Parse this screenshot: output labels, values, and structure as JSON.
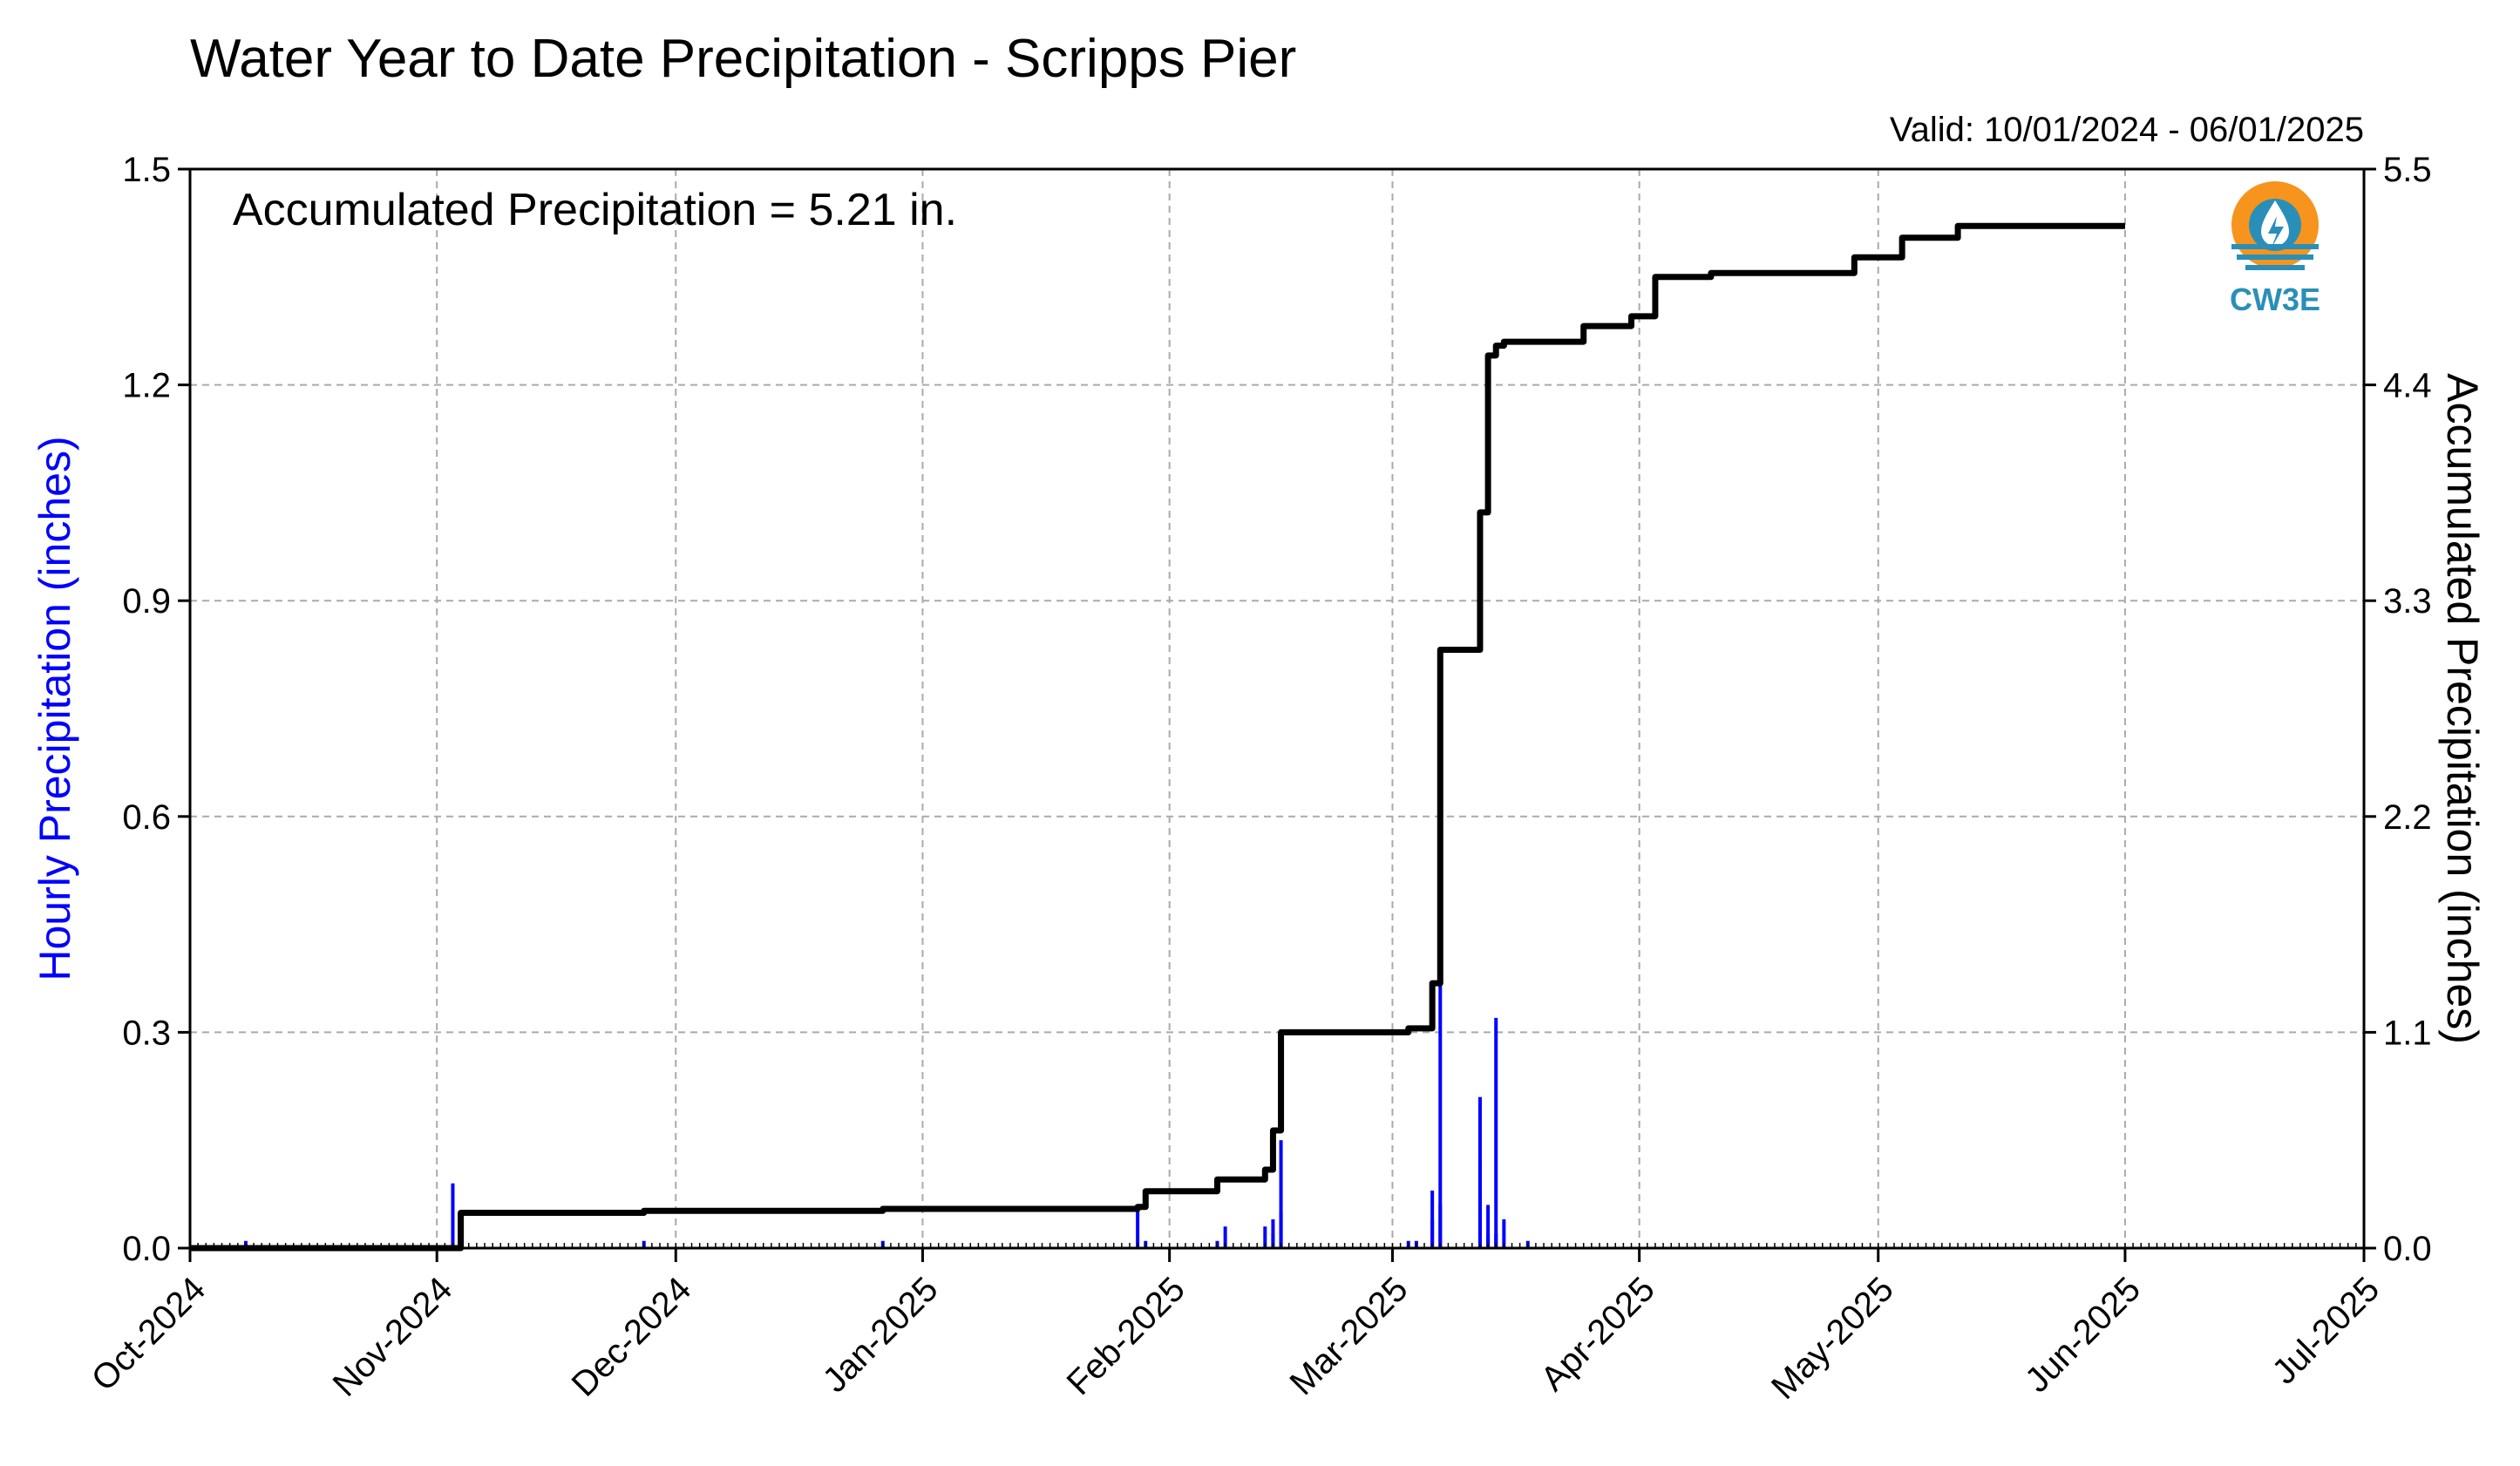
{
  "chart_data": {
    "type": "bar",
    "title": "Water Year to Date Precipitation - Scripps Pier",
    "valid_text": "Valid: 10/01/2024 - 06/01/2025",
    "annotation": "Accumulated Precipitation = 5.21 in.",
    "logo_text": "CW3E",
    "ylabel": "Hourly Precipitation (inches)",
    "ylabel_right": "Accumulated Precipitation (inches)",
    "ylim": [
      0,
      1.5
    ],
    "ylim_right": [
      0,
      5.5
    ],
    "yticks": [
      "0.0",
      "0.3",
      "0.6",
      "0.9",
      "1.2",
      "1.5"
    ],
    "yticks_right": [
      "0.0",
      "1.1",
      "2.2",
      "3.3",
      "4.4",
      "5.5"
    ],
    "xlim": [
      "2024-10-01",
      "2025-07-01"
    ],
    "xticks": [
      "Oct-2024",
      "Nov-2024",
      "Dec-2024",
      "Jan-2025",
      "Feb-2025",
      "Mar-2025",
      "Apr-2025",
      "May-2025",
      "Jun-2025",
      "Jul-2025"
    ],
    "grid": true,
    "colors": {
      "hourly": "#0000ff",
      "accumulated": "#000000"
    },
    "series": [
      {
        "name": "Hourly Precipitation (inches)",
        "type": "bar",
        "x": [
          "2024-10-08",
          "2024-11-03",
          "2024-11-04",
          "2024-11-27",
          "2024-12-27",
          "2025-01-28",
          "2025-01-29",
          "2025-02-07",
          "2025-02-08",
          "2025-02-13",
          "2025-02-14",
          "2025-02-14",
          "2025-02-15",
          "2025-02-15",
          "2025-03-03",
          "2025-03-04",
          "2025-03-06",
          "2025-03-06",
          "2025-03-07",
          "2025-03-07",
          "2025-03-12",
          "2025-03-12",
          "2025-03-13",
          "2025-03-13",
          "2025-03-14",
          "2025-03-14",
          "2025-03-15",
          "2025-03-18"
        ],
        "values": [
          0.01,
          0.09,
          0.05,
          0.01,
          0.01,
          0.06,
          0.01,
          0.01,
          0.03,
          0.03,
          0.02,
          0.04,
          0.15,
          0.05,
          0.01,
          0.01,
          0.08,
          0.04,
          0.37,
          0.06,
          0.12,
          0.21,
          0.06,
          0.02,
          0.32,
          0.02,
          0.04,
          0.01
        ]
      },
      {
        "name": "Accumulated Precipitation (inches)",
        "type": "line",
        "axis": "right",
        "x": [
          "2024-10-01",
          "2024-11-03",
          "2024-11-04",
          "2024-11-27",
          "2024-12-27",
          "2025-01-28",
          "2025-01-29",
          "2025-02-07",
          "2025-02-13",
          "2025-02-14",
          "2025-02-15",
          "2025-03-03",
          "2025-03-06",
          "2025-03-07",
          "2025-03-12",
          "2025-03-13",
          "2025-03-14",
          "2025-03-15",
          "2025-03-25",
          "2025-03-31",
          "2025-04-03",
          "2025-04-10",
          "2025-04-28",
          "2025-05-04",
          "2025-05-11",
          "2025-06-01"
        ],
        "values": [
          0.0,
          0.0,
          0.18,
          0.19,
          0.2,
          0.21,
          0.29,
          0.35,
          0.4,
          0.6,
          1.1,
          1.12,
          1.35,
          3.05,
          3.75,
          4.55,
          4.6,
          4.62,
          4.7,
          4.75,
          4.95,
          4.97,
          5.05,
          5.15,
          5.21,
          5.21
        ]
      }
    ]
  }
}
